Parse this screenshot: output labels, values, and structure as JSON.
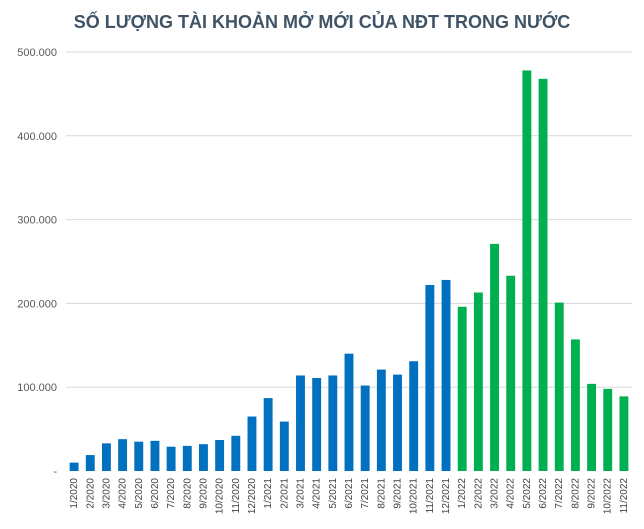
{
  "chart_data": {
    "type": "bar",
    "title": "SỐ LƯỢNG TÀI KHOẢN MỞ MỚI CỦA NĐT TRONG NƯỚC",
    "xlabel": "",
    "ylabel": "",
    "ylim": [
      0,
      500000
    ],
    "yticks": [
      0,
      100000,
      200000,
      300000,
      400000,
      500000
    ],
    "ytick_labels": [
      "-",
      "100.000",
      "200.000",
      "300.000",
      "400.000",
      "500.000"
    ],
    "grid": true,
    "colors": {
      "2020-2021": "#0070c0",
      "2022": "#00b050"
    },
    "categories": [
      "1/2020",
      "2/2020",
      "3/2020",
      "4/2020",
      "5/2020",
      "6/2020",
      "7/2020",
      "8/2020",
      "9/2020",
      "10/2020",
      "11/2020",
      "12/2020",
      "1/2021",
      "2/2021",
      "3/2021",
      "4/2021",
      "5/2021",
      "6/2021",
      "7/2021",
      "8/2021",
      "9/2021",
      "10/2021",
      "11/2021",
      "12/2021",
      "1/2022",
      "2/2022",
      "3/2022",
      "4/2022",
      "5/2022",
      "6/2022",
      "7/2022",
      "8/2022",
      "9/2022",
      "10/2022",
      "11/2022"
    ],
    "values": [
      10000,
      19000,
      33000,
      38000,
      35000,
      36000,
      29000,
      30000,
      32000,
      37000,
      42000,
      65000,
      87000,
      59000,
      114000,
      111000,
      114000,
      140000,
      102000,
      121000,
      115000,
      131000,
      222000,
      228000,
      196000,
      213000,
      271000,
      233000,
      478000,
      468000,
      201000,
      157000,
      104000,
      98000,
      89000
    ],
    "bar_colors": [
      "#0070c0",
      "#0070c0",
      "#0070c0",
      "#0070c0",
      "#0070c0",
      "#0070c0",
      "#0070c0",
      "#0070c0",
      "#0070c0",
      "#0070c0",
      "#0070c0",
      "#0070c0",
      "#0070c0",
      "#0070c0",
      "#0070c0",
      "#0070c0",
      "#0070c0",
      "#0070c0",
      "#0070c0",
      "#0070c0",
      "#0070c0",
      "#0070c0",
      "#0070c0",
      "#0070c0",
      "#00b050",
      "#00b050",
      "#00b050",
      "#00b050",
      "#00b050",
      "#00b050",
      "#00b050",
      "#00b050",
      "#00b050",
      "#00b050",
      "#00b050"
    ]
  }
}
